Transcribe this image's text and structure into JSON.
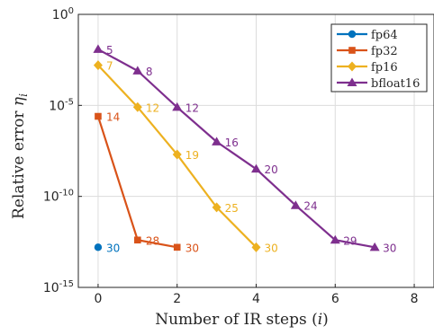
{
  "chart_data": {
    "type": "line",
    "xlabel": "Number of IR steps (i)",
    "ylabel": "Relative error η_i",
    "xlim": [
      -0.5,
      8.5
    ],
    "ylim_log10": [
      -15,
      0
    ],
    "y_scale": "log",
    "grid": true,
    "legend_position": "top-right",
    "x_ticks": [
      0,
      2,
      4,
      6,
      8
    ],
    "y_ticks": [
      {
        "exp": 0,
        "label_base": "10",
        "label_exp": "0"
      },
      {
        "exp": -5,
        "label_base": "10",
        "label_exp": "-5"
      },
      {
        "exp": -10,
        "label_base": "10",
        "label_exp": "-10"
      },
      {
        "exp": -15,
        "label_base": "10",
        "label_exp": "-15"
      }
    ],
    "series": [
      {
        "name": "fp64",
        "color": "#0072BD",
        "marker": "circle",
        "points": [
          {
            "x": 0,
            "y": 1.6e-13,
            "label": "30"
          }
        ]
      },
      {
        "name": "fp32",
        "color": "#D95319",
        "marker": "square",
        "points": [
          {
            "x": 0,
            "y": 2.5e-06,
            "label": "14"
          },
          {
            "x": 1,
            "y": 4e-13,
            "label": "28"
          },
          {
            "x": 2,
            "y": 1.6e-13,
            "label": "30"
          }
        ]
      },
      {
        "name": "fp16",
        "color": "#EDB120",
        "marker": "diamond",
        "points": [
          {
            "x": 0,
            "y": 0.0016,
            "label": "7"
          },
          {
            "x": 1,
            "y": 8e-06,
            "label": "12"
          },
          {
            "x": 2,
            "y": 2e-08,
            "label": "19"
          },
          {
            "x": 3,
            "y": 2.5e-11,
            "label": "25"
          },
          {
            "x": 4,
            "y": 1.6e-13,
            "label": "30"
          }
        ]
      },
      {
        "name": "bfloat16",
        "color": "#7E2F8E",
        "marker": "triangle",
        "points": [
          {
            "x": 0,
            "y": 0.012,
            "label": "5"
          },
          {
            "x": 1,
            "y": 0.00079,
            "label": "8"
          },
          {
            "x": 2,
            "y": 7.9e-06,
            "label": "12"
          },
          {
            "x": 3,
            "y": 1e-07,
            "label": "16"
          },
          {
            "x": 4,
            "y": 3.2e-09,
            "label": "20"
          },
          {
            "x": 5,
            "y": 3.2e-11,
            "label": "24"
          },
          {
            "x": 6,
            "y": 4e-13,
            "label": "29"
          },
          {
            "x": 7,
            "y": 1.6e-13,
            "label": "30"
          }
        ]
      }
    ]
  }
}
